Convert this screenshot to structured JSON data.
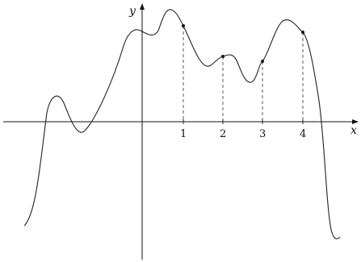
{
  "axes": {
    "x_label": "x",
    "y_label": "y",
    "tick_labels": [
      "1",
      "2",
      "3",
      "4"
    ]
  }
}
